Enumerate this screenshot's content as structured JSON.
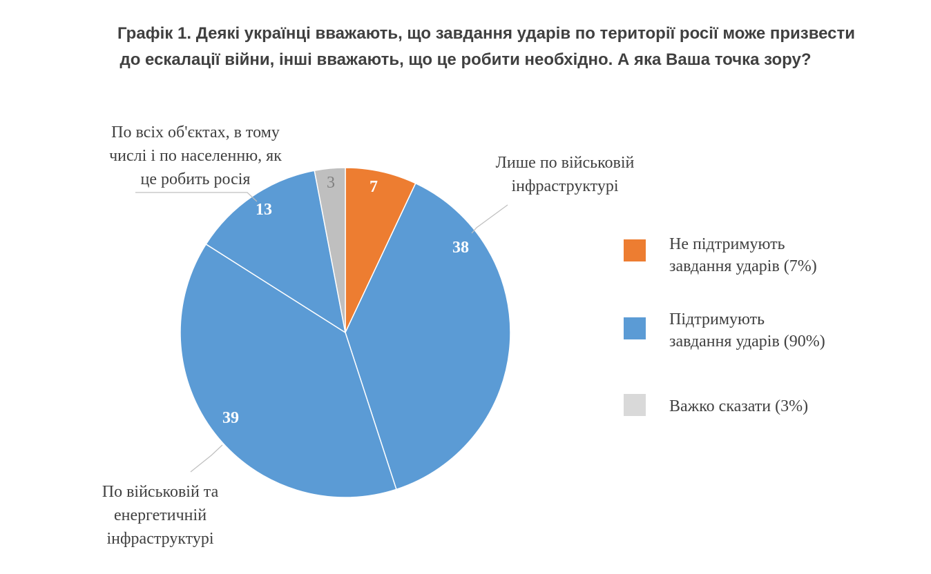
{
  "chart_data": {
    "type": "pie",
    "title": "Графік 1. Деякі українці вважають, що завдання ударів по території росії може призвести до ескалації війни, інші вважають, що це робити необхідно. А яка Ваша точка зору?",
    "title_lines": [
      "Графік 1. Деякі українці вважають, що завдання ударів по території росії може призвести",
      "до ескалації війни, інші вважають, що це робити необхідно. А яка Ваша точка зору?"
    ],
    "slices": [
      {
        "value": 7,
        "value_label": "7",
        "color": "#ED7D31",
        "category_lines": []
      },
      {
        "value": 38,
        "value_label": "38",
        "color": "#5B9BD5",
        "category_lines": [
          "Лише по військовій",
          "інфраструктурі"
        ]
      },
      {
        "value": 39,
        "value_label": "39",
        "color": "#5B9BD5",
        "category_lines": [
          "По військовій та",
          "енергетичній",
          "інфраструктурі"
        ]
      },
      {
        "value": 13,
        "value_label": "13",
        "color": "#5B9BD5",
        "category_lines": [
          "По всіх об'єктах, в тому",
          "числі і по населенню, як",
          "це робить росія"
        ]
      },
      {
        "value": 3,
        "value_label": "3",
        "color": "#BFBFBF",
        "category_lines": []
      }
    ],
    "legend": {
      "position": "right",
      "entries": [
        {
          "lines": [
            "Не підтримують",
            "завдання ударів (7%)"
          ],
          "color": "#ED7D31"
        },
        {
          "lines": [
            "Підтримують",
            "завдання ударів (90%)"
          ],
          "color": "#5B9BD5"
        },
        {
          "lines": [
            "Важко сказати (3%)"
          ],
          "color": "#D9D9D9"
        }
      ]
    }
  }
}
